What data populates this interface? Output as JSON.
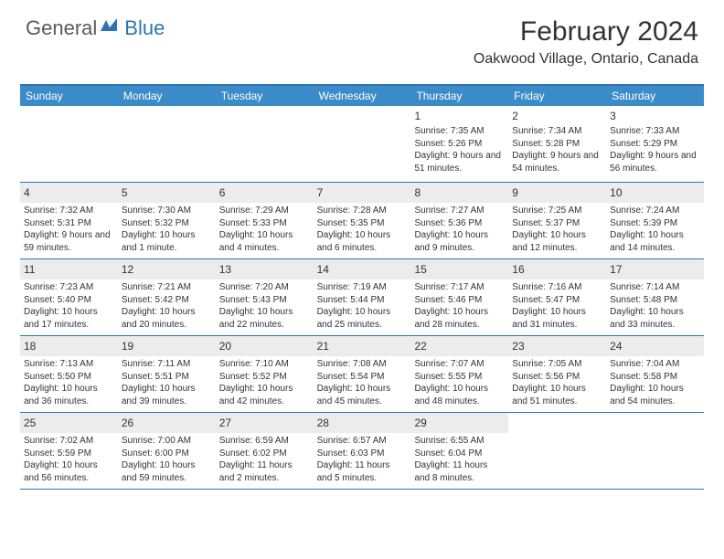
{
  "logo": {
    "general": "General",
    "blue": "Blue"
  },
  "title": "February 2024",
  "location": "Oakwood Village, Ontario, Canada",
  "colors": {
    "header_bg": "#3b8bc9",
    "border": "#2e74b5",
    "shaded": "#ececec",
    "text": "#333333",
    "logo_gray": "#5a5a5a",
    "logo_blue": "#2e74b5"
  },
  "day_headers": [
    "Sunday",
    "Monday",
    "Tuesday",
    "Wednesday",
    "Thursday",
    "Friday",
    "Saturday"
  ],
  "weeks": [
    [
      {
        "n": "",
        "sr": "",
        "ss": "",
        "dl": ""
      },
      {
        "n": "",
        "sr": "",
        "ss": "",
        "dl": ""
      },
      {
        "n": "",
        "sr": "",
        "ss": "",
        "dl": ""
      },
      {
        "n": "",
        "sr": "",
        "ss": "",
        "dl": ""
      },
      {
        "n": "1",
        "sr": "Sunrise: 7:35 AM",
        "ss": "Sunset: 5:26 PM",
        "dl": "Daylight: 9 hours and 51 minutes."
      },
      {
        "n": "2",
        "sr": "Sunrise: 7:34 AM",
        "ss": "Sunset: 5:28 PM",
        "dl": "Daylight: 9 hours and 54 minutes."
      },
      {
        "n": "3",
        "sr": "Sunrise: 7:33 AM",
        "ss": "Sunset: 5:29 PM",
        "dl": "Daylight: 9 hours and 56 minutes."
      }
    ],
    [
      {
        "n": "4",
        "sr": "Sunrise: 7:32 AM",
        "ss": "Sunset: 5:31 PM",
        "dl": "Daylight: 9 hours and 59 minutes."
      },
      {
        "n": "5",
        "sr": "Sunrise: 7:30 AM",
        "ss": "Sunset: 5:32 PM",
        "dl": "Daylight: 10 hours and 1 minute."
      },
      {
        "n": "6",
        "sr": "Sunrise: 7:29 AM",
        "ss": "Sunset: 5:33 PM",
        "dl": "Daylight: 10 hours and 4 minutes."
      },
      {
        "n": "7",
        "sr": "Sunrise: 7:28 AM",
        "ss": "Sunset: 5:35 PM",
        "dl": "Daylight: 10 hours and 6 minutes."
      },
      {
        "n": "8",
        "sr": "Sunrise: 7:27 AM",
        "ss": "Sunset: 5:36 PM",
        "dl": "Daylight: 10 hours and 9 minutes."
      },
      {
        "n": "9",
        "sr": "Sunrise: 7:25 AM",
        "ss": "Sunset: 5:37 PM",
        "dl": "Daylight: 10 hours and 12 minutes."
      },
      {
        "n": "10",
        "sr": "Sunrise: 7:24 AM",
        "ss": "Sunset: 5:39 PM",
        "dl": "Daylight: 10 hours and 14 minutes."
      }
    ],
    [
      {
        "n": "11",
        "sr": "Sunrise: 7:23 AM",
        "ss": "Sunset: 5:40 PM",
        "dl": "Daylight: 10 hours and 17 minutes."
      },
      {
        "n": "12",
        "sr": "Sunrise: 7:21 AM",
        "ss": "Sunset: 5:42 PM",
        "dl": "Daylight: 10 hours and 20 minutes."
      },
      {
        "n": "13",
        "sr": "Sunrise: 7:20 AM",
        "ss": "Sunset: 5:43 PM",
        "dl": "Daylight: 10 hours and 22 minutes."
      },
      {
        "n": "14",
        "sr": "Sunrise: 7:19 AM",
        "ss": "Sunset: 5:44 PM",
        "dl": "Daylight: 10 hours and 25 minutes."
      },
      {
        "n": "15",
        "sr": "Sunrise: 7:17 AM",
        "ss": "Sunset: 5:46 PM",
        "dl": "Daylight: 10 hours and 28 minutes."
      },
      {
        "n": "16",
        "sr": "Sunrise: 7:16 AM",
        "ss": "Sunset: 5:47 PM",
        "dl": "Daylight: 10 hours and 31 minutes."
      },
      {
        "n": "17",
        "sr": "Sunrise: 7:14 AM",
        "ss": "Sunset: 5:48 PM",
        "dl": "Daylight: 10 hours and 33 minutes."
      }
    ],
    [
      {
        "n": "18",
        "sr": "Sunrise: 7:13 AM",
        "ss": "Sunset: 5:50 PM",
        "dl": "Daylight: 10 hours and 36 minutes."
      },
      {
        "n": "19",
        "sr": "Sunrise: 7:11 AM",
        "ss": "Sunset: 5:51 PM",
        "dl": "Daylight: 10 hours and 39 minutes."
      },
      {
        "n": "20",
        "sr": "Sunrise: 7:10 AM",
        "ss": "Sunset: 5:52 PM",
        "dl": "Daylight: 10 hours and 42 minutes."
      },
      {
        "n": "21",
        "sr": "Sunrise: 7:08 AM",
        "ss": "Sunset: 5:54 PM",
        "dl": "Daylight: 10 hours and 45 minutes."
      },
      {
        "n": "22",
        "sr": "Sunrise: 7:07 AM",
        "ss": "Sunset: 5:55 PM",
        "dl": "Daylight: 10 hours and 48 minutes."
      },
      {
        "n": "23",
        "sr": "Sunrise: 7:05 AM",
        "ss": "Sunset: 5:56 PM",
        "dl": "Daylight: 10 hours and 51 minutes."
      },
      {
        "n": "24",
        "sr": "Sunrise: 7:04 AM",
        "ss": "Sunset: 5:58 PM",
        "dl": "Daylight: 10 hours and 54 minutes."
      }
    ],
    [
      {
        "n": "25",
        "sr": "Sunrise: 7:02 AM",
        "ss": "Sunset: 5:59 PM",
        "dl": "Daylight: 10 hours and 56 minutes."
      },
      {
        "n": "26",
        "sr": "Sunrise: 7:00 AM",
        "ss": "Sunset: 6:00 PM",
        "dl": "Daylight: 10 hours and 59 minutes."
      },
      {
        "n": "27",
        "sr": "Sunrise: 6:59 AM",
        "ss": "Sunset: 6:02 PM",
        "dl": "Daylight: 11 hours and 2 minutes."
      },
      {
        "n": "28",
        "sr": "Sunrise: 6:57 AM",
        "ss": "Sunset: 6:03 PM",
        "dl": "Daylight: 11 hours and 5 minutes."
      },
      {
        "n": "29",
        "sr": "Sunrise: 6:55 AM",
        "ss": "Sunset: 6:04 PM",
        "dl": "Daylight: 11 hours and 8 minutes."
      },
      {
        "n": "",
        "sr": "",
        "ss": "",
        "dl": ""
      },
      {
        "n": "",
        "sr": "",
        "ss": "",
        "dl": ""
      }
    ]
  ]
}
